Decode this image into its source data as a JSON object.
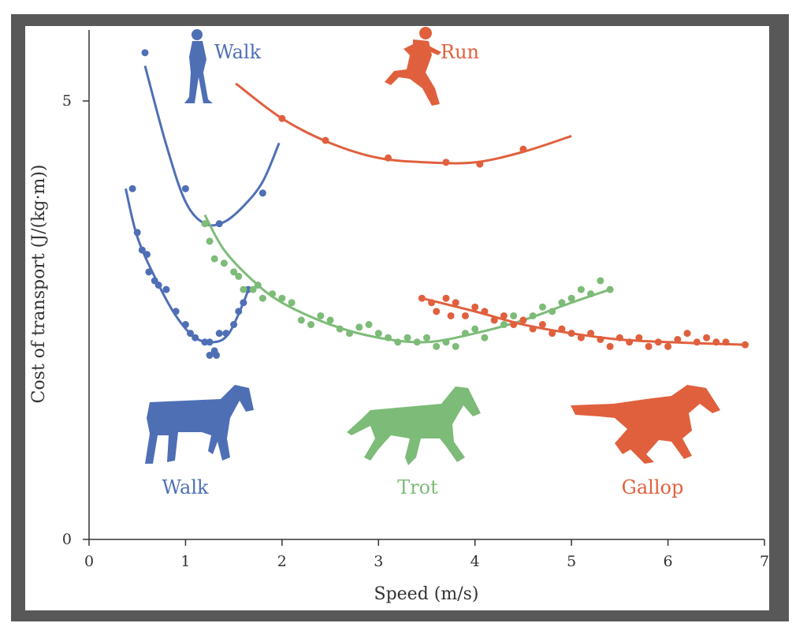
{
  "chart_data": {
    "type": "line",
    "title": "",
    "xlabel": "Speed (m/s)",
    "ylabel": "Cost of transport (J/(kg·m))",
    "xlim": [
      0,
      7
    ],
    "ylim": [
      0,
      5.8
    ],
    "xticks": [
      "0",
      "1",
      "2",
      "3",
      "4",
      "5",
      "6",
      "7"
    ],
    "yticks": [
      "0",
      "5"
    ],
    "grid": false,
    "colors": {
      "human_walk": "#4f6fb5",
      "human_run": "#e0603e",
      "horse_walk": "#4f6fb5",
      "horse_trot": "#7dbb78",
      "horse_gallop": "#e0603e",
      "axis": "#333333"
    },
    "annotations": {
      "human_walk": "Walk",
      "human_run": "Run",
      "horse_walk": "Walk",
      "horse_trot": "Trot",
      "horse_gallop": "Gallop"
    },
    "series": [
      {
        "name": "Human walk",
        "color": "#4f6fb5",
        "fit": [
          [
            0.58,
            5.4
          ],
          [
            0.8,
            4.5
          ],
          [
            1.0,
            3.85
          ],
          [
            1.2,
            3.6
          ],
          [
            1.4,
            3.62
          ],
          [
            1.6,
            3.8
          ],
          [
            1.8,
            4.08
          ],
          [
            1.97,
            4.52
          ]
        ],
        "points": [
          [
            0.58,
            5.55
          ],
          [
            1.0,
            4.0
          ],
          [
            1.35,
            3.6
          ],
          [
            1.8,
            3.95
          ]
        ]
      },
      {
        "name": "Human run",
        "color": "#e0603e",
        "fit": [
          [
            1.52,
            5.2
          ],
          [
            2.0,
            4.8
          ],
          [
            2.5,
            4.52
          ],
          [
            3.0,
            4.35
          ],
          [
            3.5,
            4.3
          ],
          [
            4.0,
            4.3
          ],
          [
            4.5,
            4.42
          ],
          [
            5.0,
            4.6
          ]
        ],
        "points": [
          [
            2.0,
            4.8
          ],
          [
            2.45,
            4.55
          ],
          [
            3.1,
            4.35
          ],
          [
            3.7,
            4.3
          ],
          [
            4.05,
            4.28
          ],
          [
            4.5,
            4.45
          ]
        ]
      },
      {
        "name": "Horse walk",
        "color": "#4f6fb5",
        "fit": [
          [
            0.38,
            4.0
          ],
          [
            0.5,
            3.45
          ],
          [
            0.7,
            2.95
          ],
          [
            0.9,
            2.55
          ],
          [
            1.1,
            2.3
          ],
          [
            1.3,
            2.25
          ],
          [
            1.45,
            2.35
          ],
          [
            1.6,
            2.7
          ],
          [
            1.65,
            2.85
          ]
        ],
        "points": [
          [
            0.45,
            4.0
          ],
          [
            0.5,
            3.5
          ],
          [
            0.55,
            3.3
          ],
          [
            0.6,
            3.25
          ],
          [
            0.62,
            3.05
          ],
          [
            0.68,
            2.95
          ],
          [
            0.72,
            2.9
          ],
          [
            0.8,
            2.85
          ],
          [
            0.9,
            2.6
          ],
          [
            1.0,
            2.45
          ],
          [
            1.05,
            2.35
          ],
          [
            1.1,
            2.3
          ],
          [
            1.2,
            2.25
          ],
          [
            1.25,
            2.25
          ],
          [
            1.3,
            2.15
          ],
          [
            1.35,
            2.35
          ],
          [
            1.42,
            2.35
          ],
          [
            1.5,
            2.45
          ],
          [
            1.55,
            2.6
          ],
          [
            1.6,
            2.7
          ],
          [
            1.65,
            2.85
          ],
          [
            1.25,
            2.1
          ],
          [
            1.32,
            2.1
          ]
        ]
      },
      {
        "name": "Horse trot",
        "color": "#7dbb78",
        "fit": [
          [
            1.2,
            3.7
          ],
          [
            1.4,
            3.3
          ],
          [
            1.7,
            2.95
          ],
          [
            2.0,
            2.7
          ],
          [
            2.5,
            2.45
          ],
          [
            3.0,
            2.3
          ],
          [
            3.5,
            2.25
          ],
          [
            4.0,
            2.35
          ],
          [
            4.5,
            2.5
          ],
          [
            5.0,
            2.7
          ],
          [
            5.4,
            2.85
          ]
        ],
        "points": [
          [
            1.2,
            3.6
          ],
          [
            1.25,
            3.4
          ],
          [
            1.3,
            3.2
          ],
          [
            1.4,
            3.15
          ],
          [
            1.5,
            3.05
          ],
          [
            1.55,
            3.0
          ],
          [
            1.6,
            2.85
          ],
          [
            1.7,
            2.85
          ],
          [
            1.75,
            2.9
          ],
          [
            1.8,
            2.75
          ],
          [
            1.9,
            2.8
          ],
          [
            2.0,
            2.75
          ],
          [
            2.1,
            2.7
          ],
          [
            2.2,
            2.5
          ],
          [
            2.3,
            2.45
          ],
          [
            2.4,
            2.55
          ],
          [
            2.5,
            2.5
          ],
          [
            2.6,
            2.4
          ],
          [
            2.7,
            2.35
          ],
          [
            2.8,
            2.42
          ],
          [
            2.9,
            2.45
          ],
          [
            3.0,
            2.35
          ],
          [
            3.1,
            2.3
          ],
          [
            3.2,
            2.25
          ],
          [
            3.3,
            2.3
          ],
          [
            3.4,
            2.25
          ],
          [
            3.5,
            2.3
          ],
          [
            3.6,
            2.2
          ],
          [
            3.7,
            2.25
          ],
          [
            3.8,
            2.2
          ],
          [
            3.9,
            2.35
          ],
          [
            4.0,
            2.4
          ],
          [
            4.1,
            2.3
          ],
          [
            4.2,
            2.5
          ],
          [
            4.3,
            2.45
          ],
          [
            4.4,
            2.55
          ],
          [
            4.5,
            2.5
          ],
          [
            4.6,
            2.55
          ],
          [
            4.7,
            2.65
          ],
          [
            4.8,
            2.6
          ],
          [
            4.9,
            2.7
          ],
          [
            5.0,
            2.75
          ],
          [
            5.1,
            2.85
          ],
          [
            5.2,
            2.8
          ],
          [
            5.3,
            2.95
          ],
          [
            5.4,
            2.85
          ]
        ]
      },
      {
        "name": "Horse gallop",
        "color": "#e0603e",
        "fit": [
          [
            3.45,
            2.75
          ],
          [
            4.0,
            2.6
          ],
          [
            4.5,
            2.45
          ],
          [
            5.0,
            2.35
          ],
          [
            5.5,
            2.28
          ],
          [
            6.0,
            2.25
          ],
          [
            6.5,
            2.23
          ],
          [
            6.8,
            2.22
          ]
        ],
        "points": [
          [
            3.45,
            2.75
          ],
          [
            3.55,
            2.7
          ],
          [
            3.6,
            2.6
          ],
          [
            3.7,
            2.75
          ],
          [
            3.75,
            2.55
          ],
          [
            3.8,
            2.7
          ],
          [
            3.9,
            2.55
          ],
          [
            4.0,
            2.65
          ],
          [
            4.1,
            2.6
          ],
          [
            4.2,
            2.5
          ],
          [
            4.3,
            2.55
          ],
          [
            4.4,
            2.45
          ],
          [
            4.5,
            2.5
          ],
          [
            4.6,
            2.4
          ],
          [
            4.7,
            2.45
          ],
          [
            4.8,
            2.35
          ],
          [
            4.9,
            2.4
          ],
          [
            5.0,
            2.35
          ],
          [
            5.1,
            2.3
          ],
          [
            5.2,
            2.35
          ],
          [
            5.3,
            2.28
          ],
          [
            5.4,
            2.2
          ],
          [
            5.5,
            2.3
          ],
          [
            5.6,
            2.25
          ],
          [
            5.7,
            2.3
          ],
          [
            5.8,
            2.2
          ],
          [
            5.9,
            2.25
          ],
          [
            6.0,
            2.2
          ],
          [
            6.1,
            2.28
          ],
          [
            6.2,
            2.35
          ],
          [
            6.3,
            2.25
          ],
          [
            6.4,
            2.3
          ],
          [
            6.5,
            2.25
          ],
          [
            6.6,
            2.25
          ],
          [
            6.8,
            2.22
          ]
        ]
      }
    ]
  }
}
